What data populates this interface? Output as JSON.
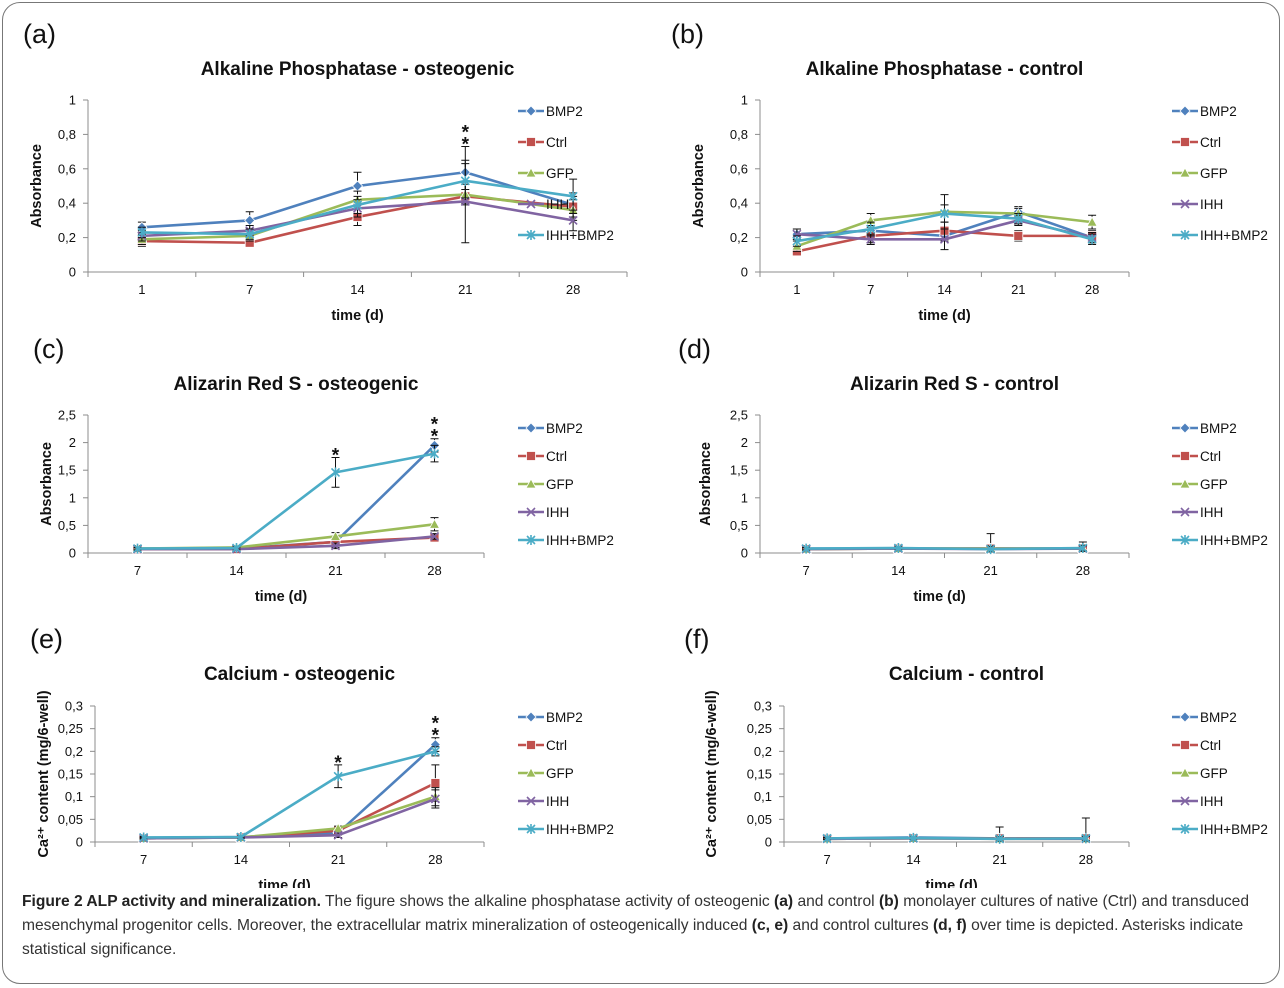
{
  "caption": {
    "title": "Figure 2 ALP activity and mineralization.",
    "t1": " The figure shows the alkaline phosphatase activity of osteogenic ",
    "a": "(a)",
    "t2": " and control ",
    "b": "(b)",
    "t3": " monolayer cultures of native (Ctrl) and transduced mesenchymal progenitor cells. Moreover, the extracellular matrix mineralization of osteogenically induced ",
    "ce": "(c, e)",
    "t4": " and control cultures ",
    "df": "(d, f)",
    "t5": " over time is depicted. Asterisks indicate statistical significance."
  },
  "series_names": [
    "BMP2",
    "Ctrl",
    "GFP",
    "IHH",
    "IHH+BMP2"
  ],
  "colors": {
    "BMP2": "#4f81bd",
    "Ctrl": "#c0504d",
    "GFP": "#9bbb59",
    "IHH": "#8064a2",
    "IHH+BMP2": "#4bacc6"
  },
  "chart_data": [
    {
      "panel": "(a)",
      "type": "line",
      "title": "Alkaline Phosphatase - osteogenic",
      "xlabel": "time (d)",
      "ylabel": "Absorbance",
      "categories": [
        "1",
        "7",
        "14",
        "21",
        "28"
      ],
      "yticks": [
        "0",
        "0,2",
        "0,4",
        "0,6",
        "0,8",
        "1"
      ],
      "ylim": [
        0,
        1
      ],
      "legend": "right",
      "series": [
        {
          "name": "BMP2",
          "values": [
            0.26,
            0.3,
            0.5,
            0.58,
            0.39
          ],
          "errors": [
            0.03,
            0.05,
            0.08,
            0.15,
            0.07
          ]
        },
        {
          "name": "Ctrl",
          "values": [
            0.18,
            0.17,
            0.32,
            0.44,
            0.38
          ],
          "errors": [
            0.03,
            0.02,
            0.05,
            0.04,
            0.06
          ]
        },
        {
          "name": "GFP",
          "values": [
            0.19,
            0.21,
            0.42,
            0.45,
            0.36
          ],
          "errors": [
            0.03,
            0.03,
            0.05,
            0.06,
            0.06
          ]
        },
        {
          "name": "IHH",
          "values": [
            0.21,
            0.24,
            0.37,
            0.41,
            0.3
          ],
          "errors": [
            0.03,
            0.03,
            0.05,
            0.24,
            0.06
          ]
        },
        {
          "name": "IHH+BMP2",
          "values": [
            0.23,
            0.22,
            0.39,
            0.53,
            0.44
          ],
          "errors": [
            0.03,
            0.03,
            0.05,
            0.1,
            0.1
          ]
        }
      ],
      "significance": [
        {
          "x": "21",
          "marks": "**"
        }
      ]
    },
    {
      "panel": "(b)",
      "type": "line",
      "title": "Alkaline Phosphatase - control",
      "xlabel": "time (d)",
      "ylabel": "Absorbance",
      "categories": [
        "1",
        "7",
        "14",
        "21",
        "28"
      ],
      "yticks": [
        "0",
        "0,2",
        "0,4",
        "0,6",
        "0,8",
        "1"
      ],
      "ylim": [
        0,
        1
      ],
      "legend": "right",
      "series": [
        {
          "name": "BMP2",
          "values": [
            0.22,
            0.24,
            0.21,
            0.35,
            0.2
          ],
          "errors": [
            0.03,
            0.03,
            0.03,
            0.03,
            0.03
          ]
        },
        {
          "name": "Ctrl",
          "values": [
            0.12,
            0.21,
            0.24,
            0.21,
            0.21
          ],
          "errors": [
            0.02,
            0.04,
            0.05,
            0.03,
            0.03
          ]
        },
        {
          "name": "GFP",
          "values": [
            0.15,
            0.3,
            0.35,
            0.34,
            0.29
          ],
          "errors": [
            0.03,
            0.04,
            0.1,
            0.03,
            0.04
          ]
        },
        {
          "name": "IHH",
          "values": [
            0.22,
            0.19,
            0.19,
            0.3,
            0.2
          ],
          "errors": [
            0.03,
            0.03,
            0.06,
            0.03,
            0.03
          ]
        },
        {
          "name": "IHH+BMP2",
          "values": [
            0.18,
            0.25,
            0.34,
            0.31,
            0.19
          ],
          "errors": [
            0.03,
            0.04,
            0.05,
            0.03,
            0.03
          ]
        }
      ],
      "significance": []
    },
    {
      "panel": "(c)",
      "type": "line",
      "title": "Alizarin Red S - osteogenic",
      "xlabel": "time (d)",
      "ylabel": "Absorbance",
      "categories": [
        "7",
        "14",
        "21",
        "28"
      ],
      "yticks": [
        "0",
        "0,5",
        "1",
        "1,5",
        "2",
        "2,5"
      ],
      "ylim": [
        0,
        2.5
      ],
      "legend": "right",
      "series": [
        {
          "name": "BMP2",
          "values": [
            0.08,
            0.08,
            0.2,
            1.95
          ],
          "errors": [
            0.02,
            0.02,
            0.1,
            0.12
          ]
        },
        {
          "name": "Ctrl",
          "values": [
            0.07,
            0.07,
            0.2,
            0.28
          ],
          "errors": [
            0.02,
            0.02,
            0.05,
            0.05
          ]
        },
        {
          "name": "GFP",
          "values": [
            0.08,
            0.1,
            0.3,
            0.52
          ],
          "errors": [
            0.02,
            0.02,
            0.07,
            0.12
          ]
        },
        {
          "name": "IHH",
          "values": [
            0.07,
            0.07,
            0.13,
            0.3
          ],
          "errors": [
            0.02,
            0.02,
            0.05,
            0.05
          ]
        },
        {
          "name": "IHH+BMP2",
          "values": [
            0.08,
            0.09,
            1.46,
            1.8
          ],
          "errors": [
            0.02,
            0.02,
            0.27,
            0.15
          ]
        }
      ],
      "significance": [
        {
          "x": "21",
          "marks": "*"
        },
        {
          "x": "28",
          "marks": "**"
        }
      ]
    },
    {
      "panel": "(d)",
      "type": "line",
      "title": "Alizarin Red S - control",
      "xlabel": "time (d)",
      "ylabel": "Absorbance",
      "categories": [
        "7",
        "14",
        "21",
        "28"
      ],
      "yticks": [
        "0",
        "0,5",
        "1",
        "1,5",
        "2",
        "2,5"
      ],
      "ylim": [
        0,
        2.5
      ],
      "legend": "right",
      "series": [
        {
          "name": "BMP2",
          "values": [
            0.08,
            0.08,
            0.08,
            0.08
          ],
          "errors": [
            0.03,
            0.03,
            0.27,
            0.12
          ]
        },
        {
          "name": "Ctrl",
          "values": [
            0.07,
            0.08,
            0.08,
            0.08
          ],
          "errors": [
            0.02,
            0.02,
            0.05,
            0.05
          ]
        },
        {
          "name": "GFP",
          "values": [
            0.07,
            0.08,
            0.08,
            0.08
          ],
          "errors": [
            0.02,
            0.02,
            0.05,
            0.05
          ]
        },
        {
          "name": "IHH",
          "values": [
            0.07,
            0.08,
            0.07,
            0.08
          ],
          "errors": [
            0.02,
            0.02,
            0.05,
            0.05
          ]
        },
        {
          "name": "IHH+BMP2",
          "values": [
            0.08,
            0.09,
            0.07,
            0.09
          ],
          "errors": [
            0.02,
            0.02,
            0.05,
            0.05
          ]
        }
      ],
      "significance": []
    },
    {
      "panel": "(e)",
      "type": "line",
      "title": "Calcium - osteogenic",
      "xlabel": "time (d)",
      "ylabel": "Ca²⁺ content (mg/6-well)",
      "categories": [
        "7",
        "14",
        "21",
        "28"
      ],
      "yticks": [
        "0",
        "0,05",
        "0,1",
        "0,15",
        "0,2",
        "0,25",
        "0,3"
      ],
      "ylim": [
        0,
        0.3
      ],
      "legend": "right",
      "series": [
        {
          "name": "BMP2",
          "values": [
            0.009,
            0.011,
            0.02,
            0.215
          ],
          "errors": [
            0.002,
            0.002,
            0.005,
            0.015
          ]
        },
        {
          "name": "Ctrl",
          "values": [
            0.008,
            0.01,
            0.025,
            0.13
          ],
          "errors": [
            0.002,
            0.002,
            0.005,
            0.04
          ]
        },
        {
          "name": "GFP",
          "values": [
            0.008,
            0.01,
            0.03,
            0.1
          ],
          "errors": [
            0.002,
            0.002,
            0.005,
            0.02
          ]
        },
        {
          "name": "IHH",
          "values": [
            0.008,
            0.01,
            0.015,
            0.095
          ],
          "errors": [
            0.002,
            0.002,
            0.005,
            0.02
          ]
        },
        {
          "name": "IHH+BMP2",
          "values": [
            0.01,
            0.011,
            0.145,
            0.2
          ],
          "errors": [
            0.002,
            0.002,
            0.025,
            0.01
          ]
        }
      ],
      "significance": [
        {
          "x": "21",
          "marks": "*"
        },
        {
          "x": "28",
          "marks": "**"
        }
      ]
    },
    {
      "panel": "(f)",
      "type": "line",
      "title": "Calcium - control",
      "xlabel": "time (d)",
      "ylabel": "Ca²⁺ content (mg/6-well)",
      "categories": [
        "7",
        "14",
        "21",
        "28"
      ],
      "yticks": [
        "0",
        "0,05",
        "0,1",
        "0,15",
        "0,2",
        "0,25",
        "0,3"
      ],
      "ylim": [
        0,
        0.3
      ],
      "legend": "right",
      "series": [
        {
          "name": "BMP2",
          "values": [
            0.008,
            0.01,
            0.008,
            0.008
          ],
          "errors": [
            0.002,
            0.002,
            0.025,
            0.045
          ]
        },
        {
          "name": "Ctrl",
          "values": [
            0.007,
            0.008,
            0.008,
            0.008
          ],
          "errors": [
            0.002,
            0.002,
            0.005,
            0.005
          ]
        },
        {
          "name": "GFP",
          "values": [
            0.007,
            0.008,
            0.007,
            0.007
          ],
          "errors": [
            0.002,
            0.002,
            0.005,
            0.005
          ]
        },
        {
          "name": "IHH",
          "values": [
            0.007,
            0.008,
            0.007,
            0.007
          ],
          "errors": [
            0.002,
            0.002,
            0.005,
            0.005
          ]
        },
        {
          "name": "IHH+BMP2",
          "values": [
            0.008,
            0.009,
            0.007,
            0.008
          ],
          "errors": [
            0.002,
            0.002,
            0.005,
            0.005
          ]
        }
      ],
      "significance": []
    }
  ]
}
